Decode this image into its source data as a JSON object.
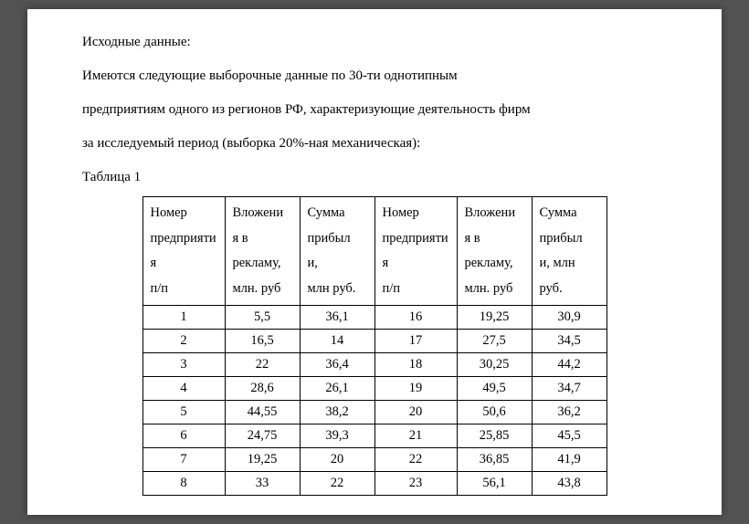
{
  "document": {
    "intro_line1": "Исходные данные:",
    "intro_line2": "Имеются следующие выборочные данные по 30-ти однотипным",
    "intro_line3": "предприятиям одного из регионов РФ, характеризующие деятельность фирм",
    "intro_line4": "за исследуемый период (выборка 20%-ная механическая):",
    "table_label": "Таблица 1"
  },
  "table": {
    "headers": {
      "col1_l1": "Номер",
      "col1_l2": "предприяти",
      "col1_l3": "я",
      "col1_l4": "п/п",
      "col2_l1": "Вложени",
      "col2_l2": "я в",
      "col2_l3": "рекламу,",
      "col2_l4": "млн. руб",
      "col3_l1": "Сумма",
      "col3_l2": "прибыл",
      "col3_l3": "и,",
      "col3_l4": "млн руб.",
      "col4_l1": "Номер",
      "col4_l2": "предприяти",
      "col4_l3": "я",
      "col4_l4": "п/п",
      "col5_l1": "Вложени",
      "col5_l2": "я в",
      "col5_l3": "рекламу,",
      "col5_l4": "млн. руб",
      "col6_l1": "Сумма",
      "col6_l2": "прибыл",
      "col6_l3": "и, млн",
      "col6_l4": "руб."
    },
    "rows": [
      {
        "n1": "1",
        "v1": "5,5",
        "s1": "36,1",
        "n2": "16",
        "v2": "19,25",
        "s2": "30,9"
      },
      {
        "n1": "2",
        "v1": "16,5",
        "s1": "14",
        "n2": "17",
        "v2": "27,5",
        "s2": "34,5"
      },
      {
        "n1": "3",
        "v1": "22",
        "s1": "36,4",
        "n2": "18",
        "v2": "30,25",
        "s2": "44,2"
      },
      {
        "n1": "4",
        "v1": "28,6",
        "s1": "26,1",
        "n2": "19",
        "v2": "49,5",
        "s2": "34,7"
      },
      {
        "n1": "5",
        "v1": "44,55",
        "s1": "38,2",
        "n2": "20",
        "v2": "50,6",
        "s2": "36,2"
      },
      {
        "n1": "6",
        "v1": "24,75",
        "s1": "39,3",
        "n2": "21",
        "v2": "25,85",
        "s2": "45,5"
      },
      {
        "n1": "7",
        "v1": "19,25",
        "s1": "20",
        "n2": "22",
        "v2": "36,85",
        "s2": "41,9"
      },
      {
        "n1": "8",
        "v1": "33",
        "s1": "22",
        "n2": "23",
        "v2": "56,1",
        "s2": "43,8"
      }
    ]
  },
  "style": {
    "page_bg": "#ffffff",
    "body_bg": "#525252",
    "text_color": "#000000",
    "border_color": "#000000",
    "font_family": "Times New Roman",
    "body_font_size": 15,
    "table_font_size": 14.5
  }
}
